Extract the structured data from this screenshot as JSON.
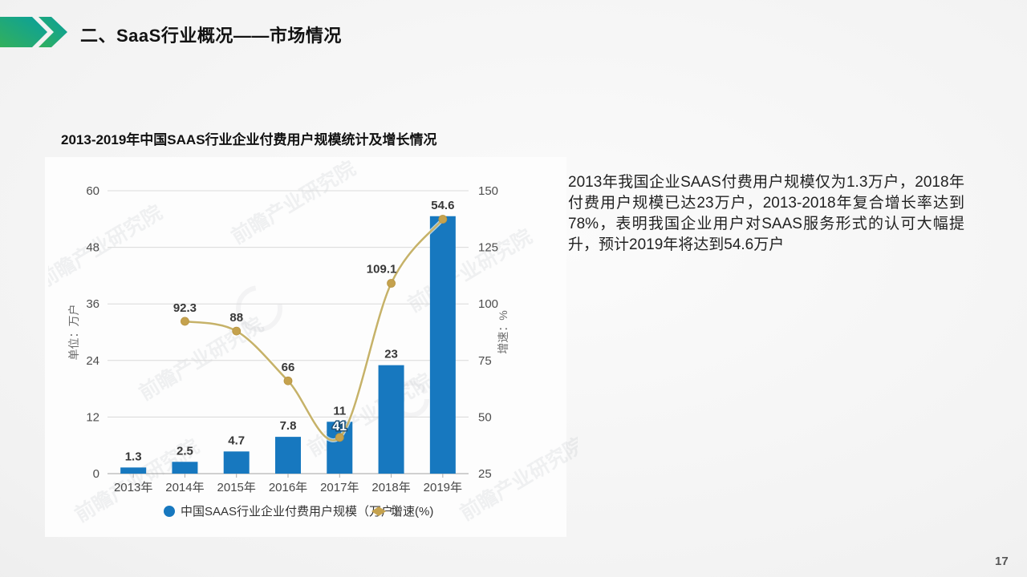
{
  "slide": {
    "header_title": "二、SaaS行业概况——市场情况",
    "page_number": "17",
    "accent_colors": [
      "#33b05c",
      "#089f9e"
    ]
  },
  "chart_section": {
    "title": "2013-2019年中国SAAS行业企业付费用户规模统计及增长情况"
  },
  "commentary": {
    "text": "2013年我国企业SAAS付费用户规模仅为1.3万户，2018年付费用户规模已达23万户，2013-2018年复合增长率达到78%，表明我国企业用户对SAAS服务形式的认可大幅提升，预计2019年将达到54.6万户"
  },
  "chart_data": {
    "type": "bar+line",
    "title": "2013-2019年中国SAAS行业企业付费用户规模统计及增长情况",
    "categories": [
      "2013年",
      "2014年",
      "2015年",
      "2016年",
      "2017年",
      "2018年",
      "2019年"
    ],
    "series": [
      {
        "name": "中国SAAS行业企业付费用户规模（万户）",
        "type": "bar",
        "axis": "left",
        "color": "#1778bf",
        "values": [
          1.3,
          2.5,
          4.7,
          7.8,
          11,
          23,
          54.6
        ],
        "labels": [
          "1.3",
          "2.5",
          "4.7",
          "7.8",
          "11",
          "23",
          "54.6"
        ]
      },
      {
        "name": "增速(%)",
        "type": "line",
        "axis": "right",
        "color": "#c6b269",
        "marker_color": "#c5a24e",
        "values": [
          null,
          92.3,
          88,
          66,
          41,
          109.1,
          137.4
        ],
        "labels": [
          "",
          "92.3",
          "88",
          "66",
          "41",
          "109.1",
          ""
        ],
        "label_positions": [
          "",
          "above",
          "above",
          "above",
          "onbar",
          "above-left",
          ""
        ]
      }
    ],
    "left_axis": {
      "title": "单位：万户",
      "range": [
        0,
        60
      ],
      "ticks": [
        0,
        12,
        24,
        36,
        48,
        60
      ]
    },
    "right_axis": {
      "title": "增速：%",
      "range": [
        25,
        150
      ],
      "ticks": [
        25,
        50,
        75,
        100,
        125,
        150
      ]
    },
    "legend_position": "bottom",
    "grid": true,
    "watermark": "前瞻产业研究院"
  }
}
